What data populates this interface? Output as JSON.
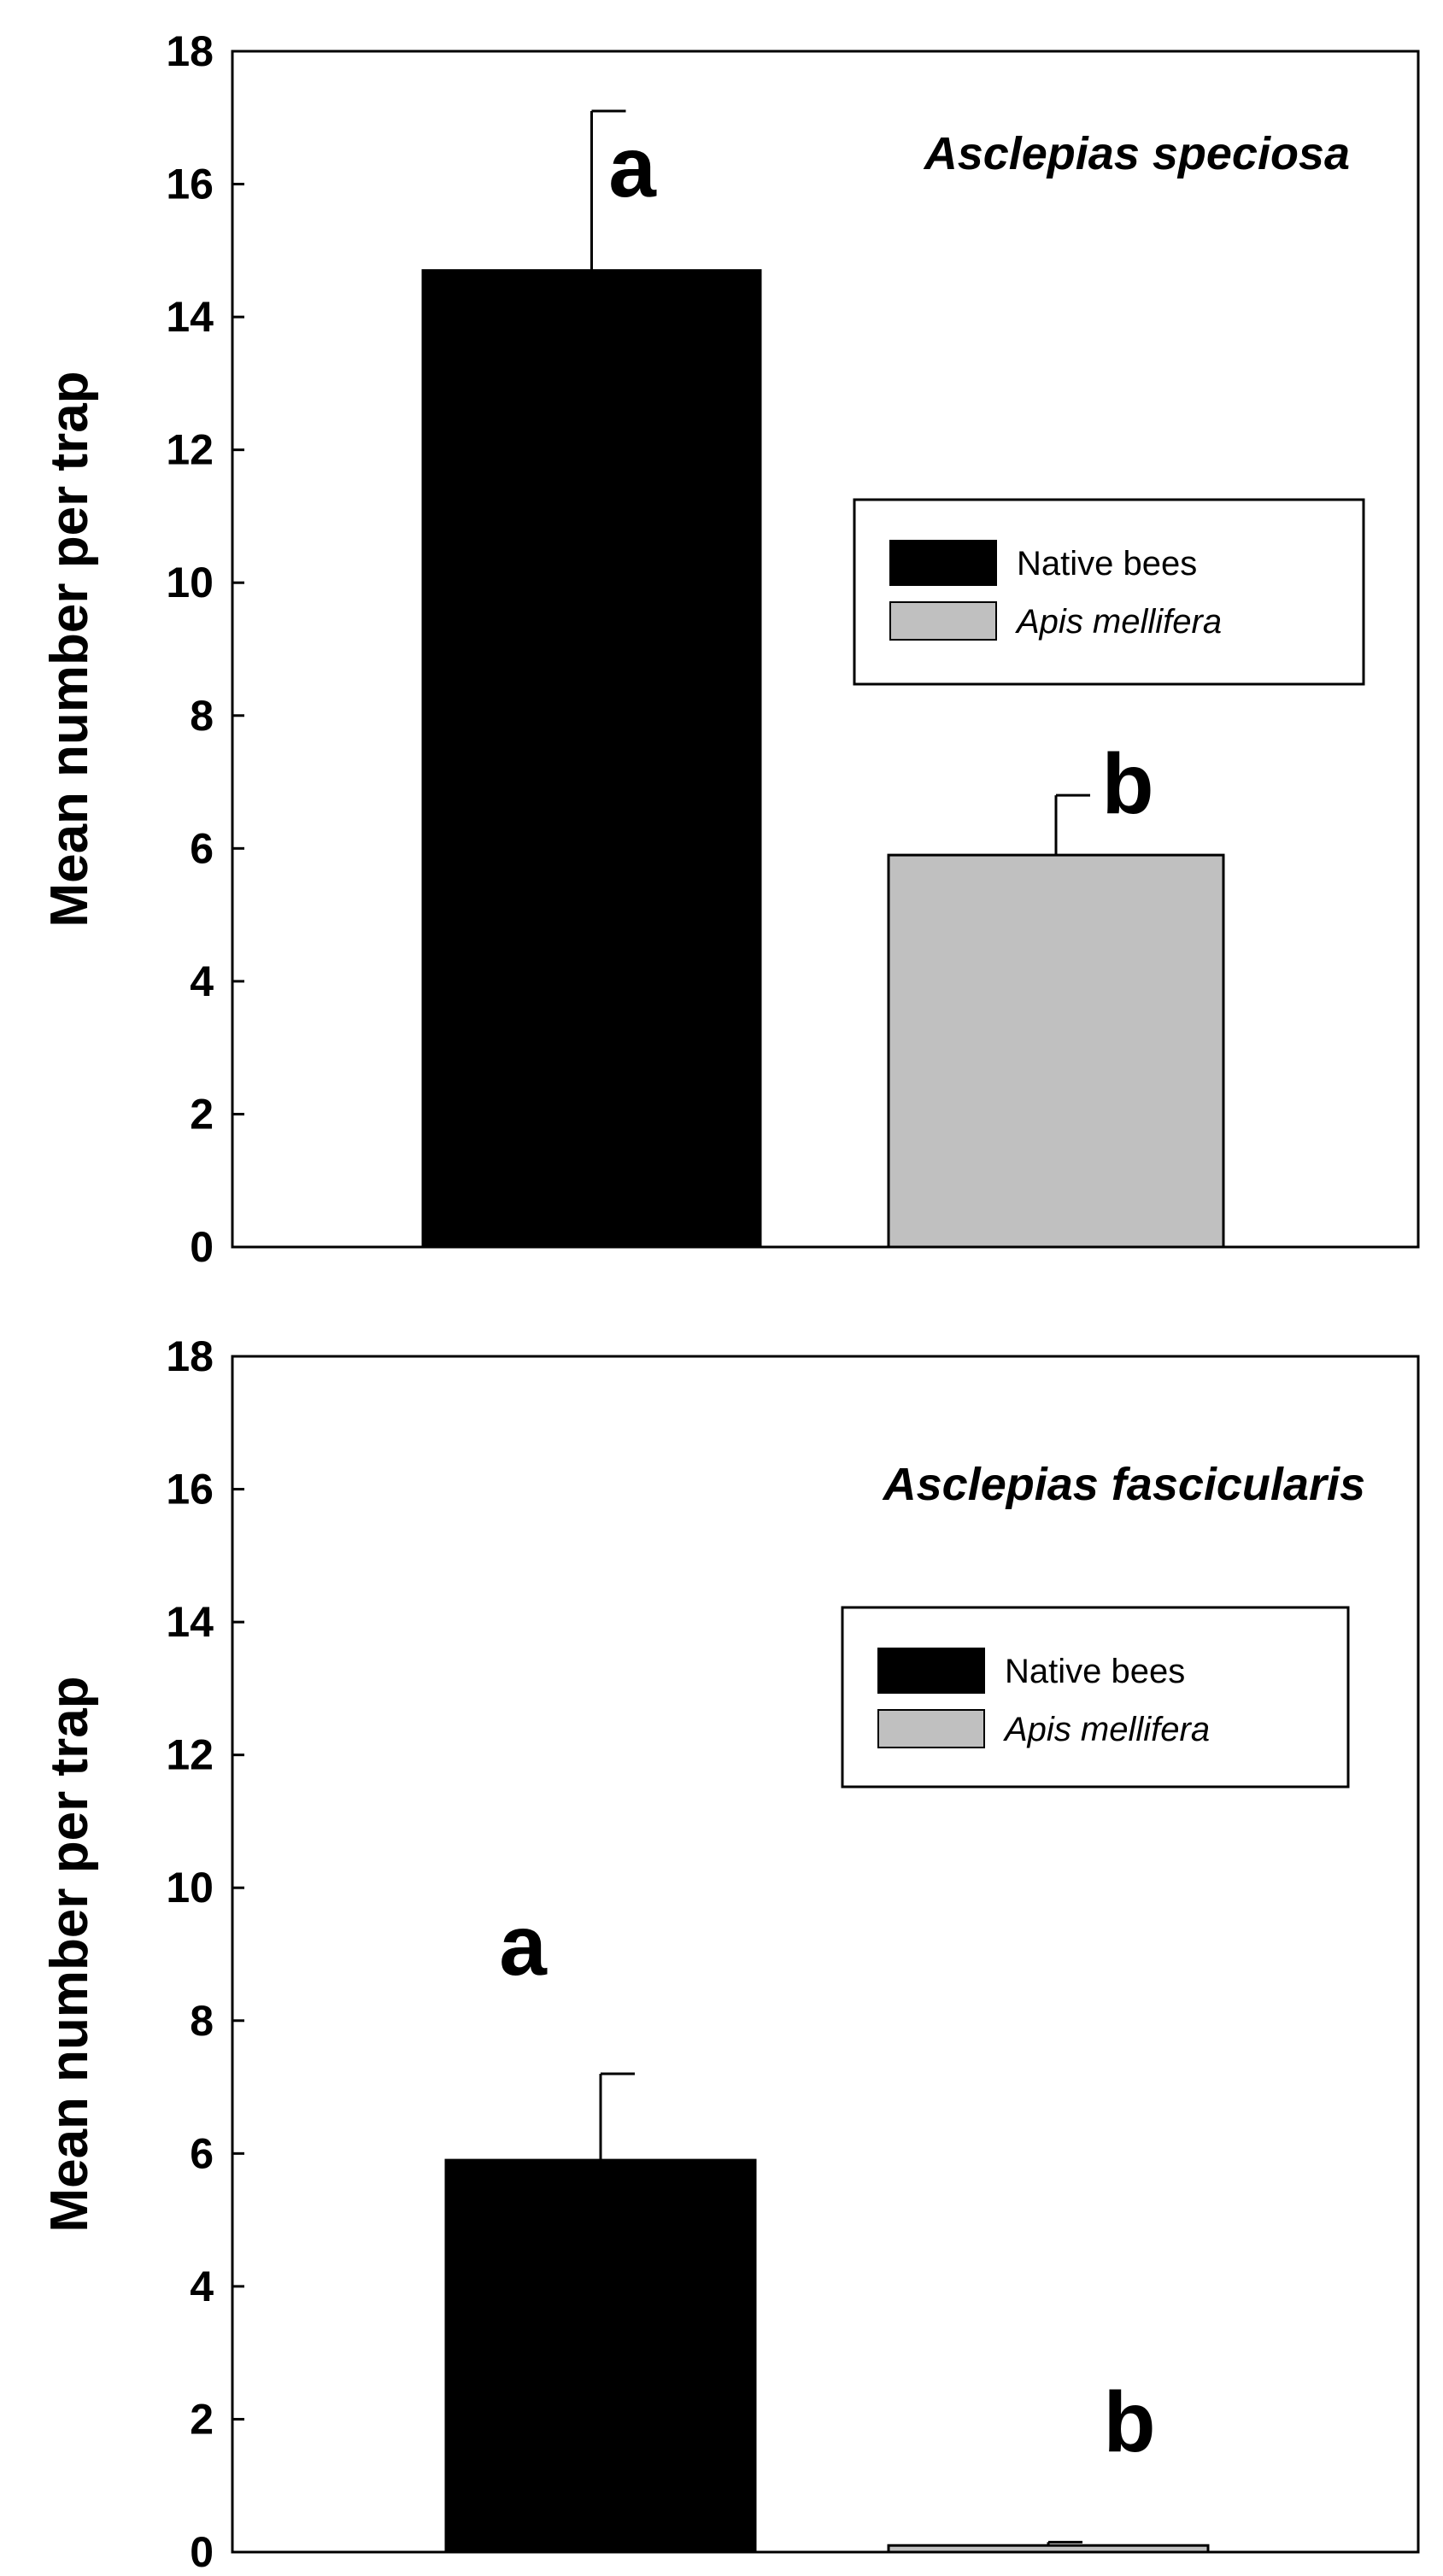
{
  "colors": {
    "background": "#ffffff",
    "axis": "#000000",
    "native_bar": "#000000",
    "apis_bar": "#c0c0c0"
  },
  "chart_data": [
    {
      "type": "bar",
      "title": "Asclepias speciosa",
      "ylabel": "Mean number per trap",
      "xlabel": "",
      "ylim": [
        0,
        18
      ],
      "yticks": [
        "0",
        "2",
        "4",
        "6",
        "8",
        "10",
        "12",
        "14",
        "16",
        "18"
      ],
      "legend": {
        "placement": "center-right",
        "entries": [
          "Native bees",
          "Apis mellifera"
        ]
      },
      "series": [
        {
          "name": "Native bees",
          "value": 14.7,
          "error": 2.4,
          "sig_letter": "a",
          "color": "#000000"
        },
        {
          "name": "Apis mellifera",
          "value": 5.9,
          "error": 0.9,
          "sig_letter": "b",
          "color": "#c0c0c0"
        }
      ]
    },
    {
      "type": "bar",
      "title": "Asclepias fascicularis",
      "ylabel": "Mean number per trap",
      "xlabel": "",
      "ylim": [
        0,
        18
      ],
      "yticks": [
        "0",
        "2",
        "4",
        "6",
        "8",
        "10",
        "12",
        "14",
        "16",
        "18"
      ],
      "legend": {
        "placement": "upper-right",
        "entries": [
          "Native bees",
          "Apis mellifera"
        ]
      },
      "series": [
        {
          "name": "Native bees",
          "value": 5.9,
          "error": 1.3,
          "sig_letter": "a",
          "color": "#000000"
        },
        {
          "name": "Apis mellifera",
          "value": 0.1,
          "error": 0.05,
          "sig_letter": "b",
          "color": "#c0c0c0"
        }
      ]
    }
  ]
}
